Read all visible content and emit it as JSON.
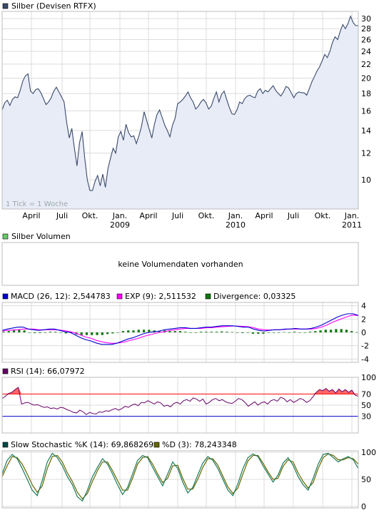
{
  "colors": {
    "price_line": "#3a4a6a",
    "price_fill": "#e8ecf7",
    "grid": "#dcdcdc",
    "frame": "#bdbdbd",
    "macd": "#0000cc",
    "exp": "#ff00ff",
    "divergence": "#117711",
    "rsi": "#660066",
    "rsi_70": "#ff0000",
    "rsi_30": "#0000cc",
    "stoch_k": "#004a4a",
    "stoch_d": "#666600",
    "legend_price": "#3a4a6a",
    "legend_volume": "#66cc66"
  },
  "panel_price": {
    "legend": "Silber (Devisen RTFX)",
    "tick_note": "1 Tick = 1 Woche",
    "months": [
      "April",
      "Juli",
      "Okt.",
      "Jan.",
      "April",
      "Juli",
      "Okt.",
      "Jan.",
      "April",
      "Juli",
      "Okt.",
      "Jan."
    ],
    "years": [
      "2009",
      "2010",
      "2011"
    ]
  },
  "panel_volume": {
    "legend": "Silber Volumen",
    "message": "keine Volumendaten vorhanden"
  },
  "panel_macd": {
    "legend_macd": "MACD (26, 12): 2,544783",
    "legend_exp": "EXP (9): 2,511532",
    "legend_div": "Divergence: 0,03325"
  },
  "panel_rsi": {
    "legend": "RSI (14): 66,07972"
  },
  "panel_stoch": {
    "legend_k": "Slow Stochastic %K (14): 69,868269",
    "legend_d": "%D (3): 78,243348"
  },
  "chart_data": [
    {
      "type": "line",
      "title": "Silber (Devisen RTFX)",
      "x_ticks": [
        "April",
        "Juli",
        "Okt.",
        "Jan. 2009",
        "April",
        "Juli",
        "Okt.",
        "Jan. 2010",
        "April",
        "Juli",
        "Okt.",
        "Jan. 2011"
      ],
      "y_ticks": [
        10,
        12,
        14,
        16,
        18,
        20,
        22,
        24,
        26,
        28,
        30
      ],
      "ylim": [
        8.2,
        31.5
      ],
      "y_scale": "log",
      "series": [
        {
          "name": "Silber (Devisen RTFX)",
          "values": [
            16.1,
            16.9,
            17.2,
            16.6,
            17.3,
            17.6,
            17.5,
            18.4,
            19.6,
            20.3,
            20.6,
            18.3,
            18.0,
            18.5,
            18.6,
            18.1,
            17.4,
            16.7,
            17.0,
            17.5,
            18.3,
            18.8,
            18.2,
            17.6,
            17.0,
            14.8,
            13.3,
            14.2,
            12.4,
            11.0,
            12.9,
            13.9,
            11.6,
            10.0,
            9.3,
            9.3,
            9.9,
            10.3,
            9.6,
            10.4,
            9.5,
            10.8,
            11.6,
            12.4,
            12.0,
            13.4,
            13.9,
            13.1,
            14.6,
            13.8,
            13.4,
            13.5,
            12.8,
            13.5,
            14.4,
            15.9,
            15.0,
            14.1,
            13.3,
            14.6,
            15.6,
            16.1,
            15.3,
            14.5,
            14.0,
            13.4,
            14.5,
            15.2,
            16.8,
            17.0,
            17.3,
            17.7,
            18.2,
            17.5,
            17.0,
            16.2,
            16.5,
            17.0,
            17.3,
            16.9,
            16.2,
            16.5,
            17.4,
            18.2,
            17.0,
            17.9,
            18.3,
            17.3,
            16.4,
            15.7,
            15.6,
            16.1,
            17.0,
            16.8,
            17.4,
            17.7,
            17.8,
            17.6,
            17.5,
            18.3,
            18.6,
            18.0,
            18.4,
            18.2,
            18.6,
            19.0,
            18.4,
            18.0,
            17.7,
            18.2,
            18.9,
            18.7,
            18.1,
            17.5,
            18.0,
            18.2,
            18.1,
            18.1,
            17.8,
            18.6,
            19.5,
            20.2,
            21.0,
            21.6,
            22.5,
            23.5,
            23.0,
            24.0,
            25.5,
            26.5,
            26.0,
            27.5,
            28.8,
            28.0,
            29.0,
            30.5,
            29.2,
            28.6,
            28.6
          ]
        }
      ]
    },
    {
      "type": "bar",
      "title": "Silber Volumen",
      "values": []
    },
    {
      "type": "line",
      "y_ticks": [
        -4,
        -2,
        0,
        2,
        4
      ],
      "ylim": [
        -4.5,
        4.5
      ],
      "series": [
        {
          "name": "MACD (26, 12)",
          "last": 2.544783,
          "values": [
            0.3,
            0.5,
            0.65,
            0.8,
            0.8,
            0.5,
            0.4,
            0.3,
            0.4,
            0.5,
            0.5,
            0.3,
            0.1,
            0.0,
            -0.4,
            -0.8,
            -1.1,
            -1.3,
            -1.6,
            -1.8,
            -1.8,
            -1.8,
            -1.6,
            -1.3,
            -1.0,
            -0.8,
            -0.5,
            -0.2,
            0.0,
            0.1,
            0.2,
            0.4,
            0.5,
            0.6,
            0.7,
            0.7,
            0.6,
            0.6,
            0.7,
            0.8,
            0.8,
            0.9,
            1.0,
            1.0,
            1.0,
            0.9,
            0.8,
            0.8,
            0.5,
            0.3,
            0.2,
            0.3,
            0.4,
            0.4,
            0.5,
            0.5,
            0.6,
            0.5,
            0.5,
            0.6,
            0.8,
            1.1,
            1.5,
            1.9,
            2.3,
            2.6,
            2.8,
            2.8,
            2.55
          ]
        },
        {
          "name": "EXP (9)",
          "last": 2.511532,
          "values": [
            0.2,
            0.3,
            0.35,
            0.4,
            0.5,
            0.5,
            0.5,
            0.4,
            0.4,
            0.4,
            0.4,
            0.35,
            0.25,
            0.1,
            -0.1,
            -0.4,
            -0.7,
            -0.9,
            -1.2,
            -1.4,
            -1.55,
            -1.65,
            -1.6,
            -1.5,
            -1.3,
            -1.1,
            -0.9,
            -0.6,
            -0.4,
            -0.2,
            0.0,
            0.1,
            0.3,
            0.4,
            0.5,
            0.6,
            0.6,
            0.6,
            0.6,
            0.7,
            0.7,
            0.8,
            0.85,
            0.9,
            0.95,
            0.95,
            0.9,
            0.85,
            0.7,
            0.5,
            0.4,
            0.35,
            0.4,
            0.4,
            0.45,
            0.5,
            0.5,
            0.5,
            0.5,
            0.5,
            0.6,
            0.8,
            1.1,
            1.5,
            1.8,
            2.1,
            2.4,
            2.6,
            2.51
          ]
        },
        {
          "name": "Divergence",
          "last": 0.03325,
          "values": [
            0.1,
            0.2,
            0.3,
            0.4,
            0.3,
            0.0,
            -0.1,
            -0.1,
            0.0,
            0.1,
            0.1,
            -0.05,
            -0.15,
            -0.1,
            -0.3,
            -0.4,
            -0.4,
            -0.4,
            -0.4,
            -0.4,
            -0.25,
            -0.15,
            0.0,
            0.2,
            0.3,
            0.3,
            0.4,
            0.4,
            0.4,
            0.3,
            0.2,
            0.3,
            0.2,
            0.2,
            0.2,
            0.1,
            0.0,
            0.0,
            0.1,
            0.1,
            0.1,
            0.1,
            0.15,
            0.1,
            0.05,
            -0.05,
            -0.1,
            -0.05,
            -0.2,
            -0.2,
            -0.2,
            -0.05,
            0.0,
            0.0,
            0.05,
            0.0,
            0.1,
            0.0,
            0.0,
            0.1,
            0.2,
            0.3,
            0.4,
            0.4,
            0.5,
            0.5,
            0.4,
            0.2,
            0.03
          ]
        }
      ]
    },
    {
      "type": "line",
      "y_ticks": [
        30,
        50,
        70,
        100
      ],
      "ylim": [
        0,
        100
      ],
      "series": [
        {
          "name": "RSI (14)",
          "last": 66.07972,
          "values": [
            62,
            66,
            71,
            73,
            78,
            82,
            52,
            54,
            55,
            52,
            50,
            51,
            48,
            46,
            47,
            44,
            45,
            43,
            46,
            45,
            42,
            40,
            37,
            36,
            41,
            38,
            33,
            37,
            35,
            34,
            38,
            37,
            40,
            39,
            42,
            44,
            41,
            44,
            48,
            46,
            50,
            52,
            49,
            55,
            54,
            58,
            55,
            52,
            56,
            54,
            48,
            50,
            47,
            53,
            55,
            52,
            58,
            60,
            57,
            63,
            61,
            57,
            61,
            52,
            55,
            60,
            62,
            58,
            60,
            56,
            54,
            53,
            57,
            62,
            60,
            55,
            48,
            52,
            56,
            50,
            54,
            56,
            52,
            58,
            60,
            57,
            64,
            62,
            56,
            60,
            55,
            58,
            62,
            60,
            55,
            58,
            65,
            73,
            78,
            76,
            80,
            75,
            78,
            72,
            79,
            74,
            78,
            73,
            77,
            68,
            66
          ]
        }
      ]
    },
    {
      "type": "line",
      "y_ticks": [
        0,
        50,
        100
      ],
      "ylim": [
        0,
        100
      ],
      "series": [
        {
          "name": "Slow Stochastic %K (14)",
          "last": 69.868269,
          "values": [
            60,
            85,
            96,
            88,
            70,
            50,
            30,
            20,
            48,
            82,
            98,
            90,
            75,
            55,
            40,
            18,
            10,
            30,
            55,
            72,
            88,
            78,
            60,
            40,
            22,
            35,
            60,
            85,
            94,
            90,
            72,
            55,
            38,
            60,
            82,
            70,
            45,
            25,
            35,
            58,
            80,
            92,
            85,
            70,
            50,
            30,
            20,
            42,
            70,
            90,
            97,
            92,
            75,
            60,
            45,
            58,
            80,
            90,
            76,
            55,
            40,
            30,
            52,
            78,
            96,
            98,
            90,
            82,
            88,
            92,
            86,
            70
          ]
        },
        {
          "name": "%D (3)",
          "last": 78.243348,
          "values": [
            55,
            75,
            92,
            90,
            78,
            60,
            40,
            26,
            38,
            70,
            92,
            94,
            82,
            62,
            46,
            26,
            14,
            24,
            46,
            66,
            82,
            82,
            66,
            48,
            30,
            30,
            52,
            78,
            90,
            92,
            78,
            60,
            44,
            52,
            75,
            76,
            52,
            32,
            32,
            50,
            72,
            88,
            88,
            76,
            56,
            36,
            24,
            34,
            60,
            84,
            94,
            94,
            80,
            64,
            50,
            52,
            74,
            86,
            82,
            62,
            46,
            34,
            44,
            70,
            90,
            97,
            94,
            86,
            86,
            90,
            88,
            78
          ]
        }
      ]
    }
  ]
}
